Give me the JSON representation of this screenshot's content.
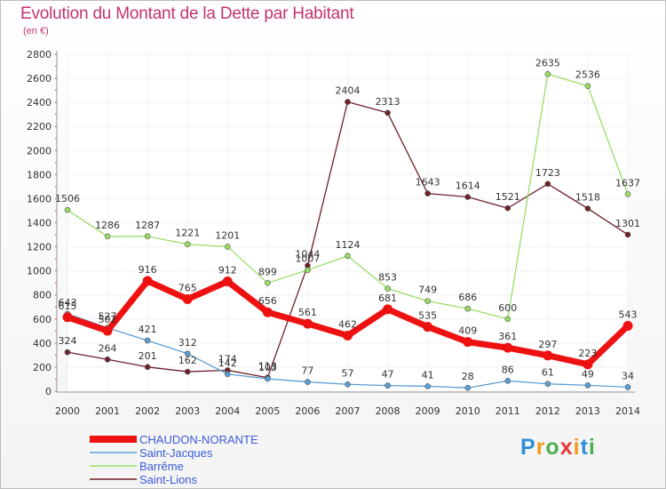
{
  "header": {
    "title": "Evolution du Montant de la Dette par Habitant",
    "unit": "(en €)"
  },
  "logo": {
    "text": "Proxiti",
    "colors": [
      "#2f8fd8",
      "#f39a1e",
      "#4caf50",
      "#e53935",
      "#f39a1e",
      "#2f8fd8",
      "#4caf50"
    ]
  },
  "chart_data": {
    "type": "line",
    "title": "Evolution du Montant de la Dette par Habitant",
    "ylabel": "(en €)",
    "xlabel": "",
    "ylim": [
      0,
      2800
    ],
    "yticks": [
      0,
      200,
      400,
      600,
      800,
      1000,
      1200,
      1400,
      1600,
      1800,
      2000,
      2200,
      2400,
      2600,
      2800
    ],
    "x": [
      "2000",
      "2001",
      "2002",
      "2003",
      "2004",
      "2005",
      "2006",
      "2007",
      "2008",
      "2009",
      "2010",
      "2011",
      "2012",
      "2013",
      "2014"
    ],
    "grid": true,
    "legend_position": "bottom-left",
    "series": [
      {
        "name": "Saint-Lions",
        "color": "#6e1f2a",
        "values": [
          324,
          264,
          201,
          162,
          174,
          113,
          1044,
          2404,
          2313,
          1643,
          1614,
          1521,
          1723,
          1518,
          1301
        ]
      },
      {
        "name": "Barrême",
        "color": "#99dd66",
        "values": [
          1506,
          1286,
          1287,
          1221,
          1201,
          899,
          1007,
          1124,
          853,
          749,
          686,
          600,
          2635,
          2536,
          1637
        ]
      },
      {
        "name": "Saint-Jacques",
        "color": "#5a9fd4",
        "values": [
          643,
          527,
          421,
          312,
          142,
          103,
          77,
          57,
          47,
          41,
          28,
          86,
          61,
          49,
          34
        ]
      },
      {
        "name": "CHAUDON-NORANTE",
        "color": "#ee1111",
        "values": [
          615,
          502,
          916,
          765,
          912,
          656,
          561,
          462,
          681,
          535,
          409,
          361,
          297,
          223,
          543
        ]
      }
    ]
  }
}
